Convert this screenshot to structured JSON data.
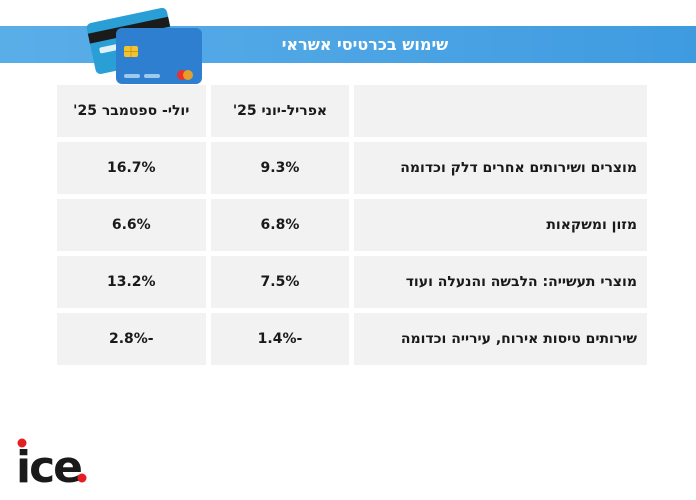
{
  "header": {
    "title": "שימוש בכרטיסי אשראי"
  },
  "icons": {
    "cards": "credit-cards-icon"
  },
  "table": {
    "headers": [
      "",
      "אפריל-יוני 25'",
      "יולי- ספטמבר 25'"
    ],
    "rows": [
      {
        "label": "מוצרים ושירותים אחרים דלק וכדומה",
        "apr_jun": "9.3%",
        "jul_sep": "16.7%"
      },
      {
        "label": "מזון ומשקאות",
        "apr_jun": "6.8%",
        "jul_sep": "6.6%"
      },
      {
        "label": "מוצרי תעשייה: הלבשה והנעלה ועוד",
        "apr_jun": "7.5%",
        "jul_sep": "13.2%"
      },
      {
        "label": "שירותים טיסות אירוח, עירייה וכדומה",
        "apr_jun": "-1.4%",
        "jul_sep": "-2.8%"
      }
    ]
  },
  "logo": {
    "text": "ice.",
    "colors": {
      "letters": "#1a1a1a",
      "dot": "#e31e24"
    }
  },
  "colors": {
    "title_bar": "#4aa5e6",
    "cell_background": "#f2f2f2"
  }
}
